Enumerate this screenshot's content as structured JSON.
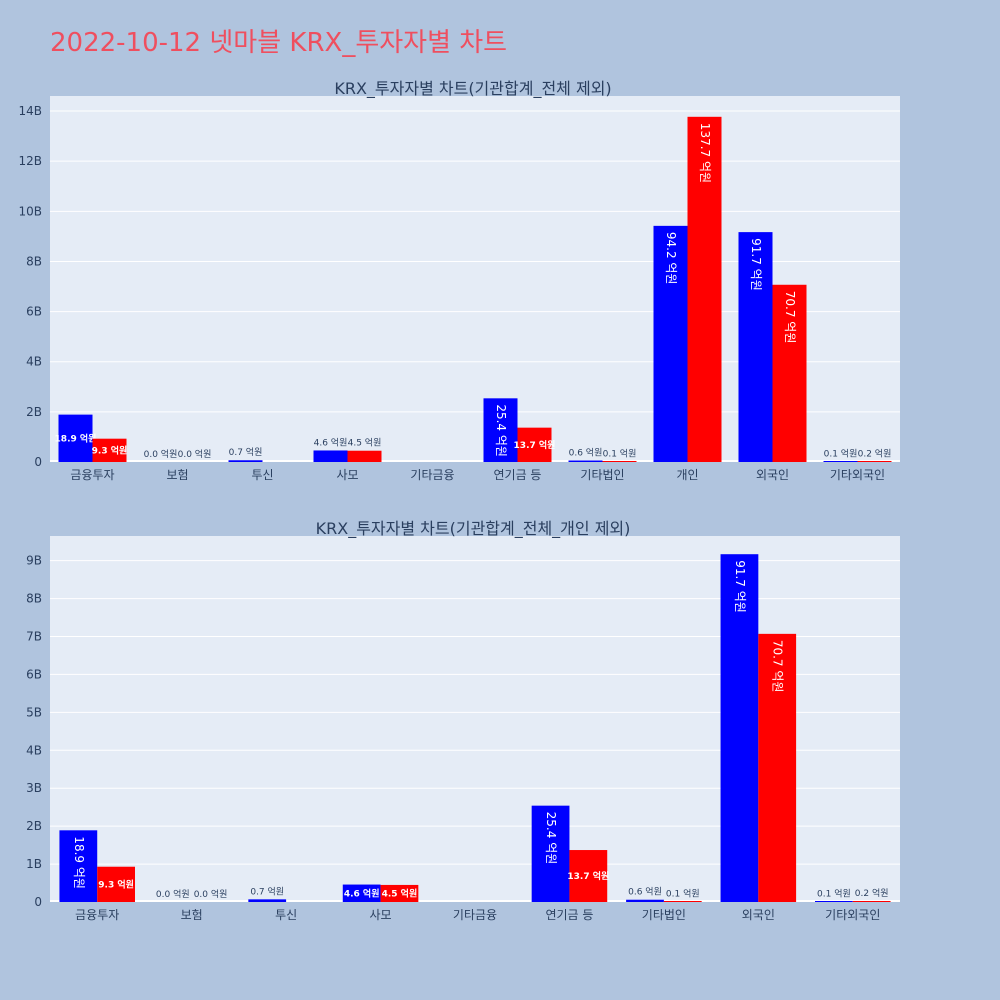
{
  "page": {
    "title": "2022-10-12 넷마블 KRX_투자자별 차트"
  },
  "colors": {
    "buy": "#0000ff",
    "sell": "#ff0000",
    "plot_bg": "#e5ecf6",
    "page_bg": "#b0c4de",
    "title": "#ef4f5f",
    "grid": "#ffffff",
    "text": "#2a3f5f"
  },
  "chart_data": [
    {
      "type": "bar",
      "title": "KRX_투자자별 차트(기관합계_전체 제외)",
      "categories": [
        "금융투자",
        "보험",
        "투신",
        "사모",
        "기타금융",
        "연기금 등",
        "기타법인",
        "개인",
        "외국인",
        "기타외국인"
      ],
      "series": [
        {
          "values": [
            1.89,
            0.0,
            0.07,
            0.46,
            null,
            2.54,
            0.06,
            9.42,
            9.17,
            0.01
          ],
          "labels": [
            "18.9 억원",
            "0.0 억원",
            "0.7 억원",
            "4.6 억원",
            "",
            "25.4 억원",
            "0.6 억원",
            "94.2 억원",
            "91.7 억원",
            "0.1 억원"
          ]
        },
        {
          "values": [
            0.93,
            0.0,
            null,
            0.45,
            null,
            1.37,
            0.01,
            13.77,
            7.07,
            0.02
          ],
          "labels": [
            "9.3 억원",
            "0.0 억원",
            "",
            "4.5 억원",
            "",
            "13.7 억원",
            "0.1 억원",
            "137.7 억원",
            "70.7 억원",
            "0.2 억원"
          ]
        }
      ],
      "ylim": [
        0,
        14.6
      ],
      "yticks": [
        0,
        2,
        4,
        6,
        8,
        10,
        12,
        14
      ],
      "ytick_labels": [
        "0",
        "2B",
        "4B",
        "6B",
        "8B",
        "10B",
        "12B",
        "14B"
      ],
      "grid": true
    },
    {
      "type": "bar",
      "title": "KRX_투자자별 차트(기관합계_전체_개인 제외)",
      "categories": [
        "금융투자",
        "보험",
        "투신",
        "사모",
        "기타금융",
        "연기금 등",
        "기타법인",
        "외국인",
        "기타외국인"
      ],
      "series": [
        {
          "values": [
            1.89,
            0.0,
            0.07,
            0.46,
            null,
            2.54,
            0.06,
            9.17,
            0.01
          ],
          "labels": [
            "18.9 억원",
            "0.0 억원",
            "0.7 억원",
            "4.6 억원",
            "",
            "25.4 억원",
            "0.6 억원",
            "91.7 억원",
            "0.1 억원"
          ]
        },
        {
          "values": [
            0.93,
            0.0,
            null,
            0.45,
            null,
            1.37,
            0.01,
            7.07,
            0.02
          ],
          "labels": [
            "9.3 억원",
            "0.0 억원",
            "",
            "4.5 억원",
            "",
            "13.7 억원",
            "0.1 억원",
            "70.7 억원",
            "0.2 억원"
          ]
        }
      ],
      "ylim": [
        0,
        9.65
      ],
      "yticks": [
        0,
        1,
        2,
        3,
        4,
        5,
        6,
        7,
        8,
        9
      ],
      "ytick_labels": [
        "0",
        "1B",
        "2B",
        "3B",
        "4B",
        "5B",
        "6B",
        "7B",
        "8B",
        "9B"
      ],
      "grid": true
    }
  ]
}
